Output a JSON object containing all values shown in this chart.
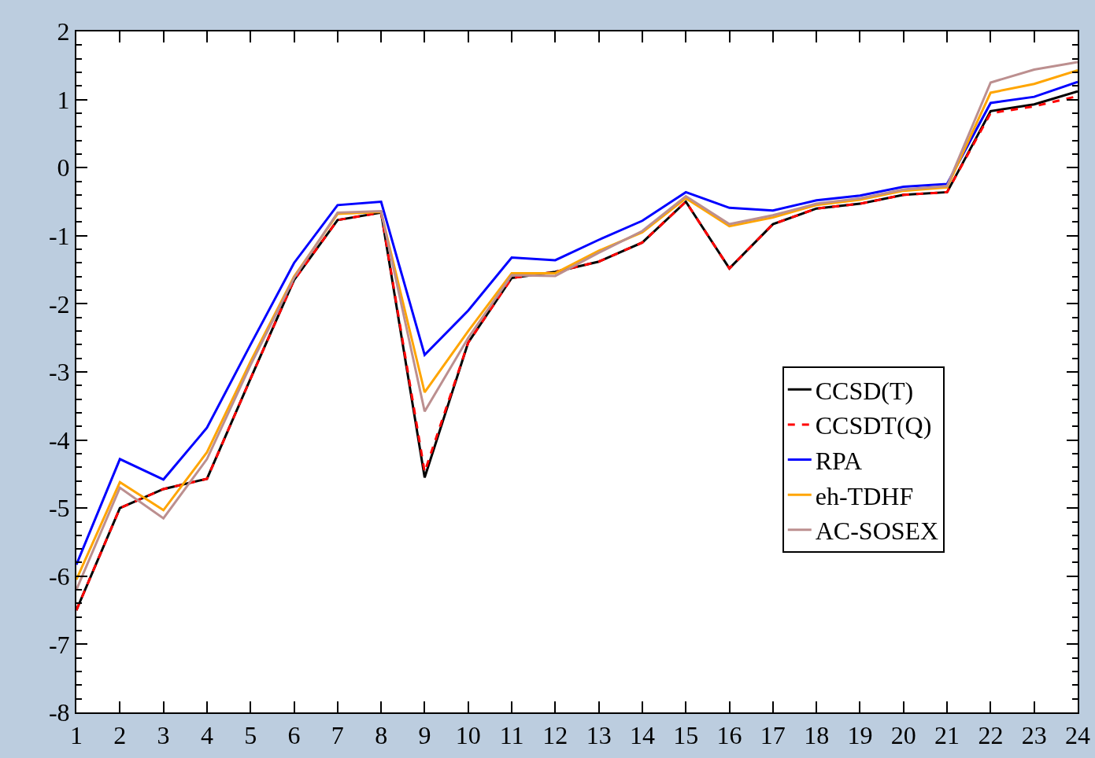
{
  "chart_data": {
    "type": "line",
    "x": [
      1,
      2,
      3,
      4,
      5,
      6,
      7,
      8,
      9,
      10,
      11,
      12,
      13,
      14,
      15,
      16,
      17,
      18,
      19,
      20,
      21,
      22,
      23,
      24
    ],
    "xlim": [
      1,
      24
    ],
    "xticks": [
      1,
      2,
      3,
      4,
      5,
      6,
      7,
      8,
      9,
      10,
      11,
      12,
      13,
      14,
      15,
      16,
      17,
      18,
      19,
      20,
      21,
      22,
      23,
      24
    ],
    "ylim": [
      -8,
      2
    ],
    "yticks": [
      -8,
      -7,
      -6,
      -5,
      -4,
      -3,
      -2,
      -1,
      0,
      1,
      2
    ],
    "grid": false,
    "legend": "right",
    "marker": "none",
    "series": [
      {
        "name": "CCSD(T)",
        "color": "#000000",
        "line_style": "solid",
        "values": [
          -6.5,
          -5.0,
          -4.72,
          -4.57,
          -3.1,
          -1.65,
          -0.77,
          -0.66,
          -4.55,
          -2.57,
          -1.62,
          -1.53,
          -1.38,
          -1.1,
          -0.5,
          -1.48,
          -0.83,
          -0.6,
          -0.53,
          -0.4,
          -0.36,
          0.83,
          0.93,
          1.12
        ]
      },
      {
        "name": "CCSDT(Q)",
        "color": "#ff0000",
        "line_style": "dashed",
        "values": [
          -6.5,
          -5.0,
          -4.72,
          -4.57,
          -3.1,
          -1.65,
          -0.77,
          -0.66,
          -4.47,
          -2.57,
          -1.62,
          -1.53,
          -1.38,
          -1.1,
          -0.5,
          -1.48,
          -0.83,
          -0.6,
          -0.53,
          -0.4,
          -0.36,
          0.8,
          0.9,
          1.05
        ]
      },
      {
        "name": "RPA",
        "color": "#0000ff",
        "line_style": "solid",
        "values": [
          -5.83,
          -4.28,
          -4.58,
          -3.82,
          -2.6,
          -1.4,
          -0.55,
          -0.5,
          -2.75,
          -2.1,
          -1.32,
          -1.36,
          -1.06,
          -0.78,
          -0.36,
          -0.59,
          -0.63,
          -0.48,
          -0.41,
          -0.28,
          -0.24,
          0.95,
          1.04,
          1.26
        ]
      },
      {
        "name": "eh-TDHF",
        "color": "#ffa500",
        "line_style": "solid",
        "values": [
          -6.05,
          -4.62,
          -5.03,
          -4.18,
          -2.85,
          -1.6,
          -0.68,
          -0.65,
          -3.3,
          -2.4,
          -1.55,
          -1.55,
          -1.22,
          -0.95,
          -0.45,
          -0.86,
          -0.73,
          -0.55,
          -0.47,
          -0.34,
          -0.29,
          1.1,
          1.23,
          1.43
        ]
      },
      {
        "name": "AC-SOSEX",
        "color": "#bc8f8f",
        "line_style": "solid",
        "values": [
          -6.2,
          -4.7,
          -5.15,
          -4.28,
          -2.9,
          -1.62,
          -0.66,
          -0.64,
          -3.58,
          -2.5,
          -1.58,
          -1.59,
          -1.25,
          -0.93,
          -0.42,
          -0.83,
          -0.7,
          -0.53,
          -0.45,
          -0.32,
          -0.27,
          1.25,
          1.44,
          1.55
        ]
      }
    ]
  }
}
